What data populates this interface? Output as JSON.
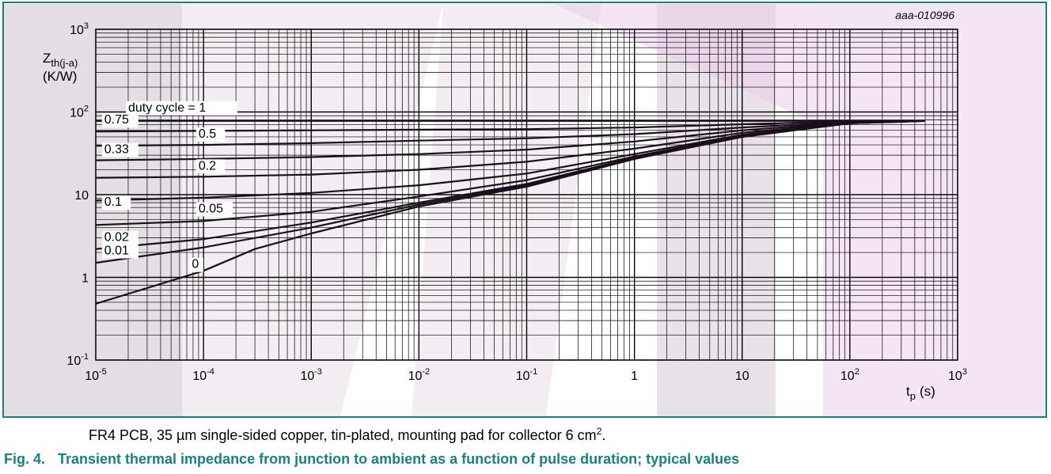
{
  "chart_data": {
    "type": "line",
    "id_label": "aaa-010996",
    "xlabel": "t",
    "xlabel_sub": "p",
    "xlabel_unit": "(s)",
    "ylabel": "Z",
    "ylabel_sub": "th(j-a)",
    "ylabel_unit": "(K/W)",
    "x_scale": "log",
    "y_scale": "log",
    "xlim": [
      1e-05,
      1000
    ],
    "ylim": [
      0.1,
      1000
    ],
    "grid": true,
    "x_ticks": [
      {
        "base": "10",
        "exp": "-5"
      },
      {
        "base": "10",
        "exp": "-4"
      },
      {
        "base": "10",
        "exp": "-3"
      },
      {
        "base": "10",
        "exp": "-2"
      },
      {
        "base": "10",
        "exp": "-1"
      },
      {
        "base": "1",
        "exp": ""
      },
      {
        "base": "10",
        "exp": ""
      },
      {
        "base": "10",
        "exp": "2"
      },
      {
        "base": "10",
        "exp": "3"
      }
    ],
    "y_ticks": [
      {
        "base": "10",
        "exp": "-1"
      },
      {
        "base": "1",
        "exp": ""
      },
      {
        "base": "10",
        "exp": ""
      },
      {
        "base": "10",
        "exp": "2"
      },
      {
        "base": "10",
        "exp": "3"
      }
    ],
    "series": [
      {
        "name": "duty cycle = 1",
        "x": [
          1e-05,
          0.0001,
          0.001,
          0.01,
          0.1,
          1,
          10,
          100,
          500
        ],
        "y": [
          78,
          78,
          78,
          78,
          78,
          78,
          78,
          78,
          78
        ]
      },
      {
        "name": "0.75",
        "x": [
          1e-05,
          0.0001,
          0.001,
          0.01,
          0.1,
          1,
          10,
          100,
          500
        ],
        "y": [
          58,
          59,
          60,
          61,
          62,
          65,
          71,
          77,
          78
        ]
      },
      {
        "name": "0.5",
        "x": [
          1e-05,
          0.0001,
          0.001,
          0.01,
          0.1,
          1,
          10,
          100,
          500
        ],
        "y": [
          39,
          40,
          42,
          45,
          48,
          54,
          65,
          76,
          78
        ]
      },
      {
        "name": "0.33",
        "x": [
          1e-05,
          0.0001,
          0.001,
          0.01,
          0.1,
          1,
          10,
          100,
          500
        ],
        "y": [
          26,
          27,
          28.5,
          31,
          35,
          44,
          60,
          75,
          78
        ]
      },
      {
        "name": "0.2",
        "x": [
          1e-05,
          0.0001,
          0.001,
          0.01,
          0.1,
          1,
          10,
          100,
          500
        ],
        "y": [
          16,
          16.5,
          17.5,
          20,
          25,
          36,
          56,
          74,
          78
        ]
      },
      {
        "name": "0.1",
        "x": [
          1e-05,
          0.0001,
          0.001,
          0.01,
          0.1,
          1,
          10,
          100,
          500
        ],
        "y": [
          8.5,
          9.2,
          10.5,
          13,
          18,
          31,
          53,
          74,
          78
        ]
      },
      {
        "name": "0.05",
        "x": [
          1e-05,
          0.0001,
          0.001,
          0.01,
          0.1,
          1,
          10,
          100,
          500
        ],
        "y": [
          4.3,
          4.8,
          6.2,
          9.5,
          15,
          29,
          52,
          74,
          78
        ]
      },
      {
        "name": "0.02",
        "x": [
          1e-05,
          0.0001,
          0.001,
          0.01,
          0.1,
          1,
          10,
          100,
          500
        ],
        "y": [
          2.2,
          2.9,
          4.6,
          8,
          13.5,
          28,
          51,
          73,
          78
        ]
      },
      {
        "name": "0.01",
        "x": [
          1e-05,
          0.0001,
          0.001,
          0.01,
          0.1,
          1,
          10,
          100,
          500
        ],
        "y": [
          1.5,
          2.3,
          4,
          7.6,
          13,
          27.5,
          51,
          73,
          78
        ]
      },
      {
        "name": "0",
        "x": [
          1e-05,
          0.0001,
          0.0003,
          0.001,
          0.01,
          0.1,
          1,
          10,
          100,
          500
        ],
        "y": [
          0.48,
          1.2,
          2.2,
          3.4,
          7.2,
          12.5,
          27,
          50,
          73,
          78
        ]
      }
    ]
  },
  "note": {
    "text": "FR4 PCB, 35 µm single-sided copper, tin-plated, mounting pad for collector 6 cm",
    "sup": "2",
    "end": "."
  },
  "caption": {
    "number": "Fig. 4.",
    "text": "Transient thermal impedance from junction to ambient as a function of pulse duration; typical values"
  }
}
